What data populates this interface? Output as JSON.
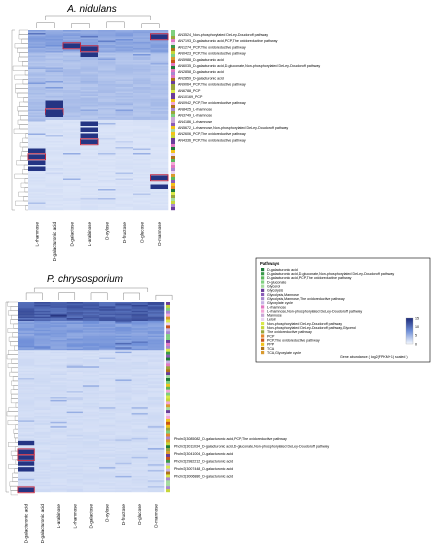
{
  "colors": {
    "scale_low": "#f4f8ff",
    "scale_high": "#1c2a7a",
    "highlight_box": "#c0223b"
  },
  "chart_data": [
    {
      "type": "heatmap",
      "title": "A. nidulans",
      "columns": [
        "L-rhamnose",
        "D-galacturonic acid",
        "D-galactose",
        "L-arabinose",
        "D-xylose",
        "D-fructose",
        "D-glucose",
        "D-mannose"
      ],
      "annotated_rows": [
        {
          "label": "AN3524_Non-phosphorylated DeLey-Doudoroff pathway",
          "max_column": "D-mannose"
        },
        {
          "label": "AN7193_D-galacturonic acid,PCP,The oxidoreductive pathway",
          "max_column": "D-galactose"
        },
        {
          "label": "AN1274_PCP,The oxidoreductive pathway",
          "max_column": "L-arabinose"
        },
        {
          "label": "AN0423_PCP,The oxidoreductive pathway",
          "max_column": "L-arabinose"
        },
        {
          "label": "AN5988_D-galacturonic acid",
          "max_column": "D-galacturonic acid"
        },
        {
          "label": "AN6035_D-galacturonic acid,D-gluconate,Non-phosphorylated DeLey-Doudoroff pathway",
          "max_column": "D-galacturonic acid"
        },
        {
          "label": "AN2858_D-galacturonic acid",
          "max_column": "D-galacturonic acid"
        },
        {
          "label": "AN2859_D-galacturonic acid",
          "max_column": "D-galacturonic acid"
        },
        {
          "label": "AN9064_PCP,The oxidoreductive pathway",
          "max_column": "L-arabinose"
        },
        {
          "label": "AN6788_PCP",
          "max_column": "L-arabinose"
        },
        {
          "label": "AN10169_PCP",
          "max_column": "L-arabinose"
        },
        {
          "label": "AN0942_PCP,The oxidoreductive pathway",
          "max_column": "L-arabinose"
        },
        {
          "label": "AN8425_L-rhamnose",
          "max_column": "L-rhamnose"
        },
        {
          "label": "AN3749_L-rhamnose",
          "max_column": "L-rhamnose"
        },
        {
          "label": "AN4186_L-rhamnose",
          "max_column": "L-rhamnose"
        },
        {
          "label": "AN5672_L-rhamnose,Non-phosphorylated DeLey-Doudoroff pathway",
          "max_column": "L-rhamnose"
        },
        {
          "label": "AN2606_PCP,The oxidoreductive pathway",
          "max_column": "D-mannose"
        },
        {
          "label": "AN4336_PCP,The oxidoreductive pathway",
          "max_column": "D-mannose"
        }
      ]
    },
    {
      "type": "heatmap",
      "title": "P. chrysosporium",
      "columns": [
        "D-galacturonic acid",
        "D-galacturonic acid",
        "L-arabinose",
        "L-rhamnose",
        "D-galactose",
        "D-xylose",
        "D-fructose",
        "D-glucose",
        "D-mannose"
      ],
      "annotated_rows": [
        {
          "label": "Phchr2|3085082_D-galacturonic acid,PCP,The oxidoreductive pathway",
          "max_column": "D-galacturonic acid"
        },
        {
          "label": "Phchr2|3011034_D-galacturonic acid,D-gluconate,Non-phosphorylated DeLey-Doudoroff pathway",
          "max_column": "D-galacturonic acid"
        },
        {
          "label": "Phchr2|3041004_D-galacturonic acid",
          "max_column": "D-galacturonic acid"
        },
        {
          "label": "Phchr2|2982212_D-galacturonic acid",
          "max_column": "D-galacturonic acid"
        },
        {
          "label": "Phchr2|3007448_D-galacturonic acid",
          "max_column": "D-galacturonic acid"
        },
        {
          "label": "Phchr2|3006880_D-galacturonic acid",
          "max_column": "D-galacturonic acid"
        }
      ]
    }
  ],
  "legend": {
    "title": "Pathways",
    "items": [
      {
        "label": "D-galacturonic acid",
        "color": "#1e7a3a"
      },
      {
        "label": "D-galacturonic acid,D-gluconate,Non-phosphorylated DeLey-Doudoroff pathway",
        "color": "#3a9a4a"
      },
      {
        "label": "D-galacturonic acid,PCP,The oxidoreductive pathway",
        "color": "#5cb85c"
      },
      {
        "label": "D-gluconate",
        "color": "#7fd07f"
      },
      {
        "label": "Glycerol",
        "color": "#a6dca0"
      },
      {
        "label": "Glycolysis",
        "color": "#6a3d9a"
      },
      {
        "label": "Glycolysis,Mannose",
        "color": "#8a5cb8"
      },
      {
        "label": "Glycolysis,Mannose,The oxidoreductive pathway",
        "color": "#a987cf"
      },
      {
        "label": "Glyoxylate cycle",
        "color": "#c7b3e3"
      },
      {
        "label": "L-rhamnose",
        "color": "#e377c2"
      },
      {
        "label": "L-rhamnose,Non-phosphorylated DeLey-Doudoroff pathway",
        "color": "#f4a6d7"
      },
      {
        "label": "Mannose",
        "color": "#c9a7d6"
      },
      {
        "label": "Leloir",
        "color": "#ead3f0"
      },
      {
        "label": "Non-phosphorylated DeLey-Doudoroff pathway",
        "color": "#d9e84a"
      },
      {
        "label": "Non-phosphorylated DeLey-Doudoroff pathway,Glycerol",
        "color": "#c6d63a"
      },
      {
        "label": "The oxidoreductive pathway",
        "color": "#9aa63a"
      },
      {
        "label": "PCP",
        "color": "#e6862a"
      },
      {
        "label": "PCP,The oxidoreductive pathway",
        "color": "#c8551a"
      },
      {
        "label": "PPP",
        "color": "#f2c21a"
      },
      {
        "label": "TCA",
        "color": "#b0731a"
      },
      {
        "label": "TCA,Glyoxylate cycle",
        "color": "#d99a2e"
      }
    ],
    "colorbar": {
      "ticks": [
        "15",
        "10",
        "5",
        "0"
      ],
      "values": [
        15,
        10,
        5,
        0
      ],
      "label": "Gene abundance ( log2(FPKM+1) scaled )"
    }
  }
}
